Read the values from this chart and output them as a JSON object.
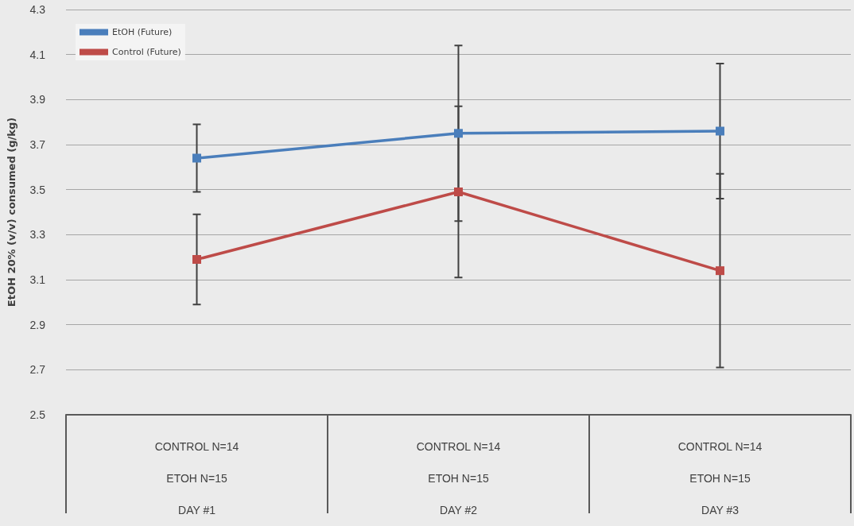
{
  "chart_data": {
    "type": "line",
    "ylabel": "EtOH 20% (v/v) consumed (g/kg)",
    "categories": [
      "CONTROL N=14\nETOH N=15\nDAY #1",
      "CONTROL N=14\nETOH N=15\nDAY #2",
      "CONTROL N=14\nETOH N=15\nDAY #3"
    ],
    "series": [
      {
        "name": "EtOH (Future)",
        "color": "#4a7ebb",
        "values": [
          3.64,
          3.75,
          3.76
        ],
        "errors": [
          0.15,
          0.39,
          0.3
        ]
      },
      {
        "name": "Control (Future)",
        "color": "#be4b48",
        "values": [
          3.19,
          3.49,
          3.14
        ],
        "errors": [
          0.2,
          0.38,
          0.43
        ]
      }
    ],
    "ylim": [
      2.5,
      4.3
    ],
    "yticks": [
      2.5,
      2.7,
      2.9,
      3.1,
      3.3,
      3.5,
      3.7,
      3.9,
      4.1,
      4.3
    ],
    "grid": "y",
    "legend": "top left",
    "marker": "square",
    "line_style": "solid"
  }
}
